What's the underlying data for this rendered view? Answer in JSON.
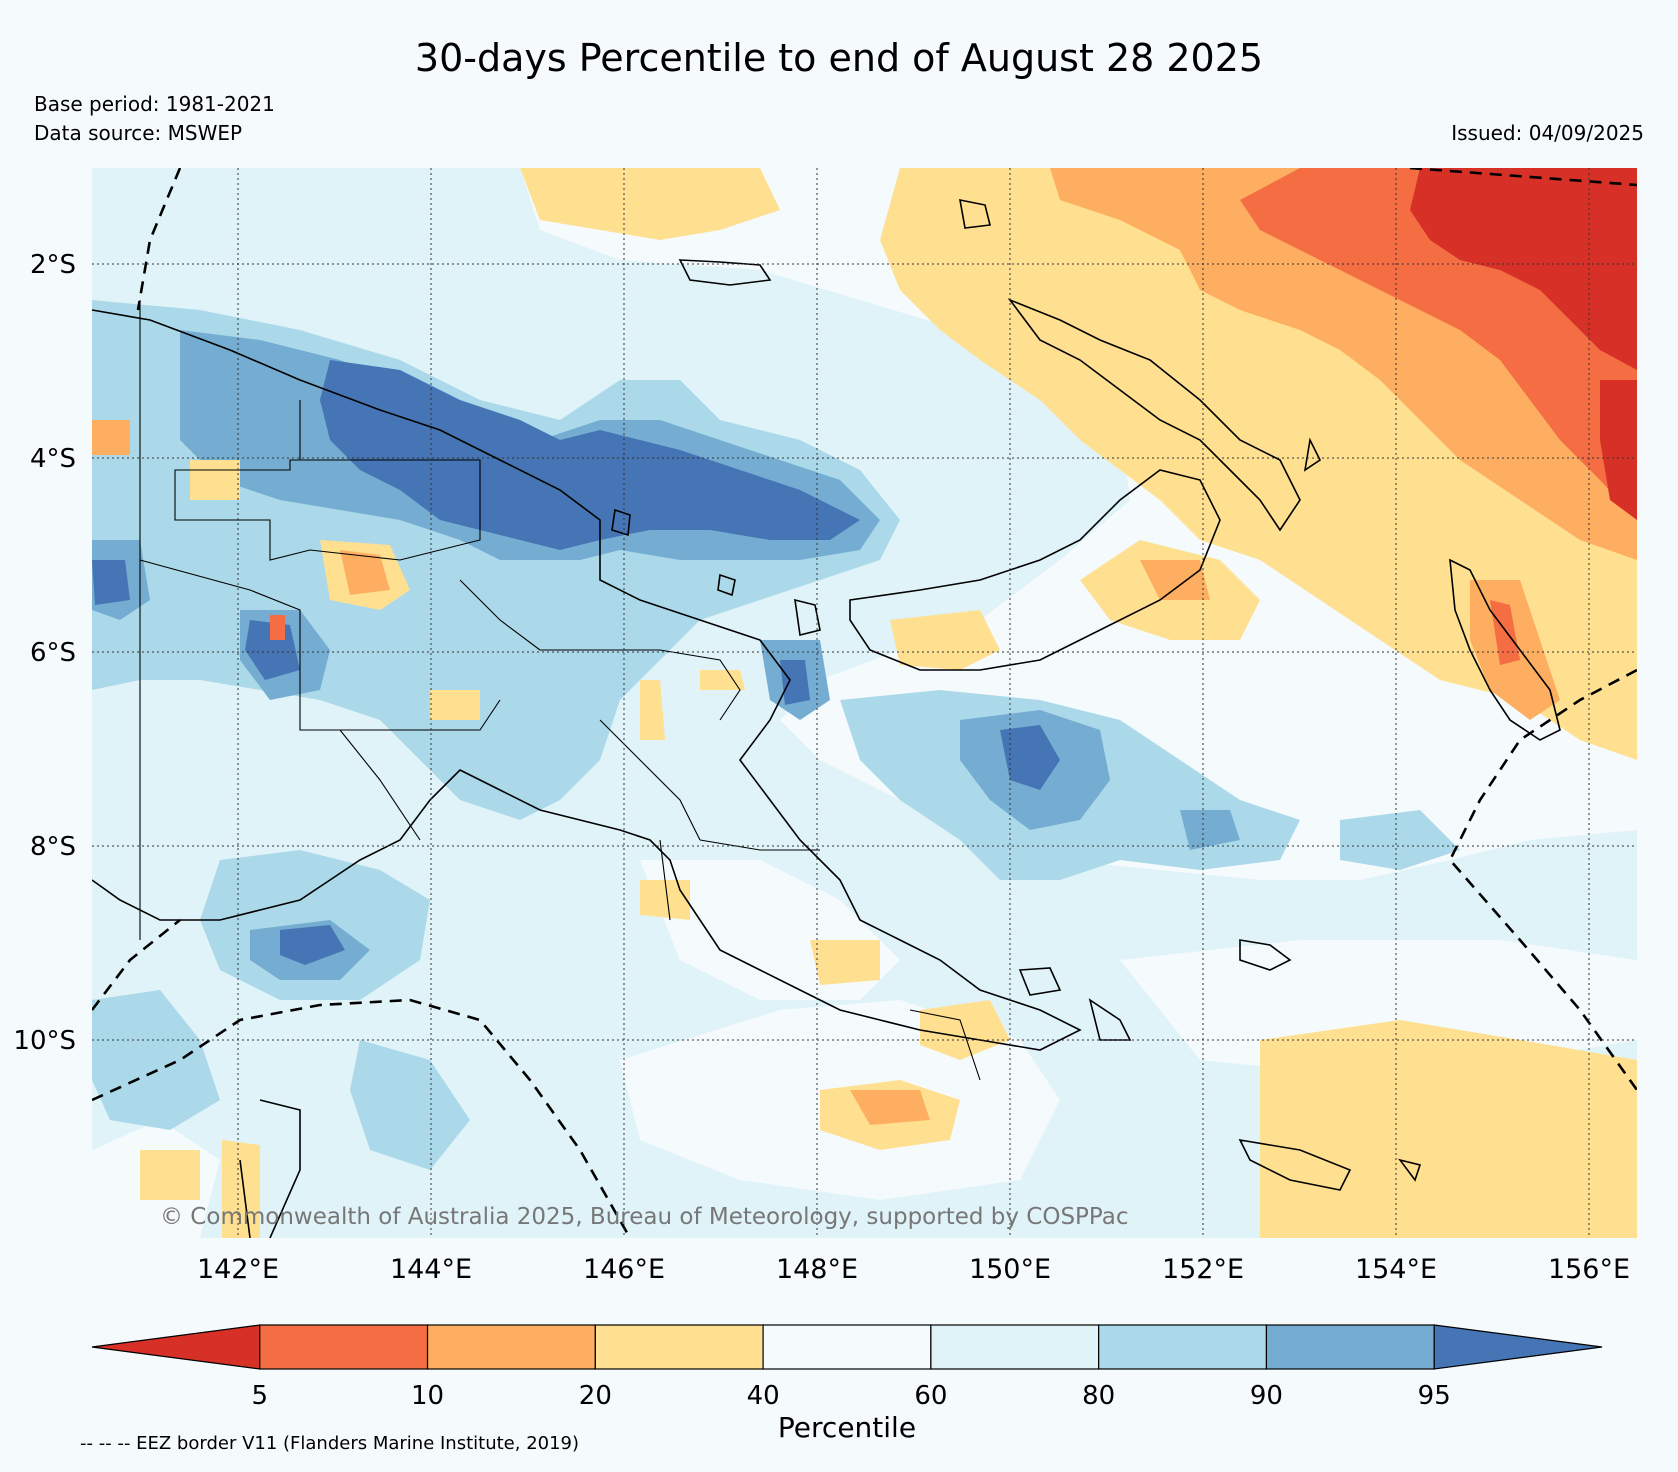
{
  "title": "30-days Percentile to end of August 28 2025",
  "base_period": "Base period: 1981-2021",
  "data_source": "Data source: MSWEP",
  "issued": "Issued: 04/09/2025",
  "copyright": "© Commonwealth of Australia 2025, Bureau of Meteorology, supported by COSPPac",
  "footer_note": "-- -- -- EEZ border V11 (Flanders Marine Institute, 2019)",
  "lat_labels": [
    "2°S",
    "4°S",
    "6°S",
    "8°S",
    "10°S"
  ],
  "lon_labels": [
    "142°E",
    "144°E",
    "146°E",
    "148°E",
    "150°E",
    "152°E",
    "154°E",
    "156°E"
  ],
  "colorbar": {
    "label": "Percentile",
    "ticks": [
      "5",
      "10",
      "20",
      "40",
      "60",
      "80",
      "90",
      "95"
    ],
    "colors": [
      "#d73027",
      "#f46d43",
      "#fdae61",
      "#fee090",
      "#f5fafd",
      "#e0f3f8",
      "#abd9e9",
      "#74add1",
      "#4575b4"
    ]
  }
}
